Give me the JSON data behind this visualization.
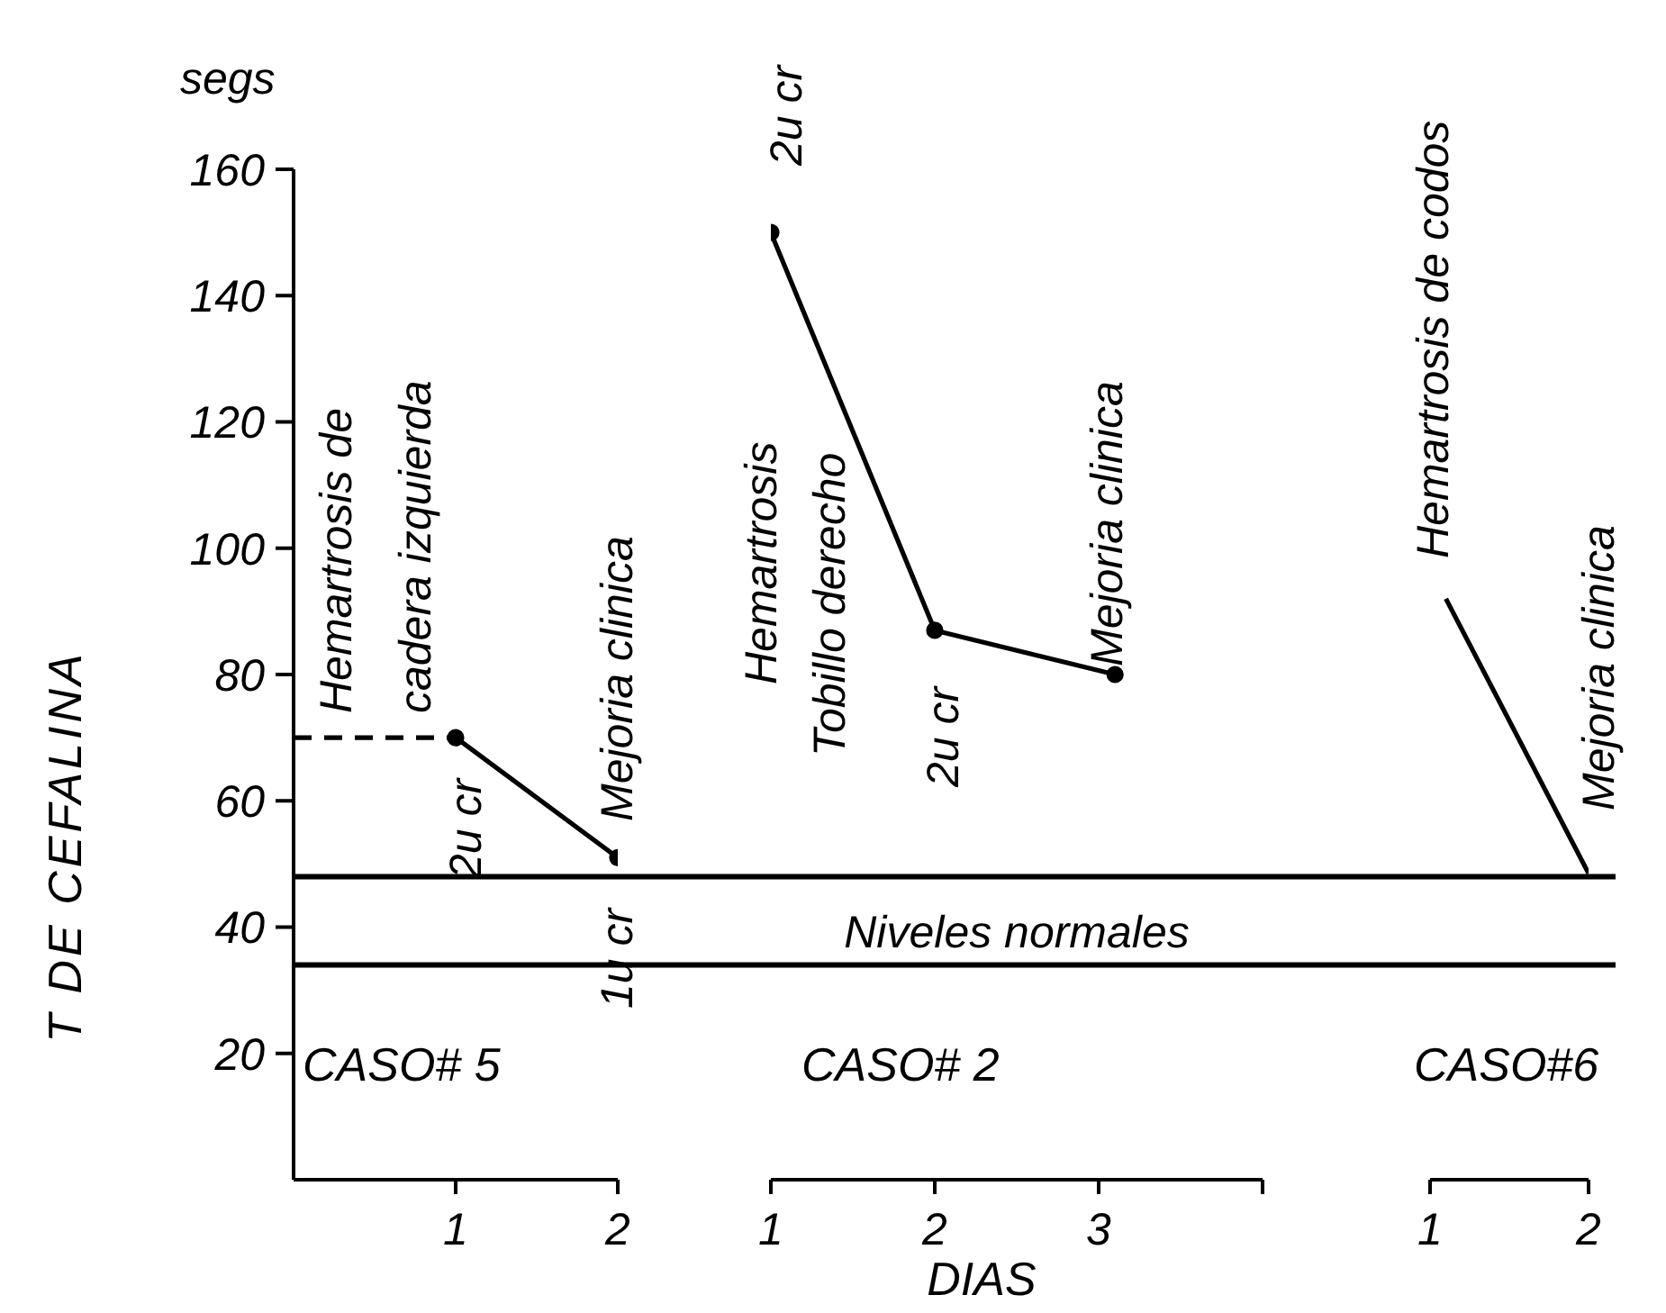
{
  "chart_data": [
    {
      "type": "line",
      "title": "CASO# 5",
      "ylabel": "T DE CEFALINA",
      "annotations": [
        "segs",
        "Hemartrosis de",
        "cadera izquierda",
        "2u cr",
        "Mejoria clinica",
        "1u cr"
      ],
      "xlim": [
        0,
        2
      ],
      "xticks": [
        1,
        2
      ],
      "ylim": [
        0,
        160
      ],
      "yticks": [
        20,
        40,
        60,
        80,
        100,
        120,
        140,
        160
      ],
      "series": [
        {
          "color": "#000000",
          "x": [
            0,
            1
          ],
          "values": [
            70,
            70
          ],
          "line_style": "dashed"
        },
        {
          "color": "#000000",
          "x": [
            1,
            2
          ],
          "values": [
            70,
            51
          ],
          "line_style": "solid",
          "marker": "circle"
        }
      ],
      "ref_lines": [
        {
          "axis": "y",
          "value": 48
        },
        {
          "axis": "y",
          "value": 34
        }
      ]
    },
    {
      "type": "line",
      "title": "CASO# 2",
      "xlabel": "DIAS",
      "annotations": [
        "2u cr",
        "Hemartrosis",
        "Tobillo derecho",
        "2u cr",
        "Mejoria clinica"
      ],
      "xlim": [
        1,
        4
      ],
      "xticks": [
        1,
        2,
        3,
        {
          "value": 4,
          "label": null
        }
      ],
      "ylim": [
        0,
        160
      ],
      "tick_labels": "x",
      "series": [
        {
          "color": "#000000",
          "x": [
            1,
            2,
            3.1
          ],
          "values": [
            150,
            87,
            80
          ],
          "line_style": "solid",
          "marker": "circle"
        }
      ],
      "ref_lines": [
        {
          "axis": "y",
          "value": 48
        },
        {
          "axis": "y",
          "value": 34,
          "label": "Niveles normales"
        }
      ]
    },
    {
      "type": "line",
      "title": "CASO#6",
      "annotations": [
        "Hemartrosis de codos",
        "Mejoria clinica"
      ],
      "xlim": [
        1,
        2
      ],
      "xticks": [
        1,
        2
      ],
      "ylim": [
        0,
        160
      ],
      "tick_labels": "x",
      "series": [
        {
          "color": "#000000",
          "x": [
            1.1,
            2
          ],
          "values": [
            92,
            48.5
          ],
          "line_style": "solid",
          "marker": "none"
        }
      ],
      "ref_lines": [
        {
          "axis": "y",
          "value": 48
        },
        {
          "axis": "y",
          "value": 34
        }
      ]
    }
  ]
}
